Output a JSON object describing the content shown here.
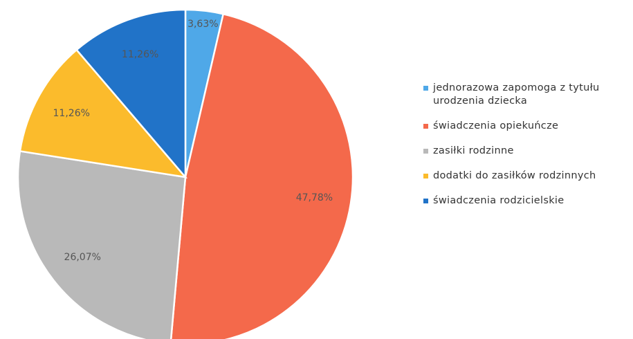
{
  "chart_data": {
    "type": "pie",
    "categories": [
      "jednorazowa zapomoga z tytułu urodzenia dziecka",
      "świadczenia opiekuńcze",
      "zasiłki rodzinne",
      "dodatki do zasiłków rodzinnych",
      "świadczenia rodzicielskie"
    ],
    "values": [
      3.63,
      47.78,
      26.07,
      11.26,
      11.26
    ],
    "value_labels": [
      "3,63%",
      "47,78%",
      "26,07%",
      "11,26%",
      "11,26%"
    ],
    "colors": [
      "#4fa8e8",
      "#f4694b",
      "#b9b9b9",
      "#fbbb2c",
      "#2173c8"
    ],
    "legend": "right"
  }
}
